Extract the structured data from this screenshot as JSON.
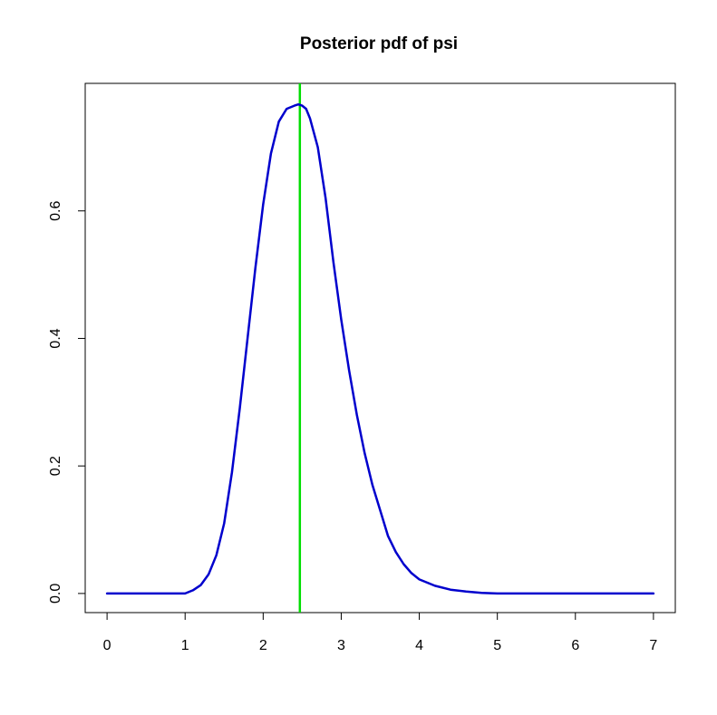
{
  "chart_data": {
    "type": "line",
    "title": "Posterior pdf of psi",
    "xlabel": "",
    "ylabel": "",
    "xlim": [
      -0.28,
      7.28
    ],
    "ylim": [
      -0.03,
      0.8
    ],
    "x_ticks": [
      0,
      1,
      2,
      3,
      4,
      5,
      6,
      7
    ],
    "y_ticks": [
      0.0,
      0.2,
      0.4,
      0.6
    ],
    "x_tick_labels": [
      "0",
      "1",
      "2",
      "3",
      "4",
      "5",
      "6",
      "7"
    ],
    "y_tick_labels": [
      "0.0",
      "0.2",
      "0.4",
      "0.6"
    ],
    "grid": false,
    "legend": "none",
    "series": [
      {
        "color": "#0000CD",
        "x": [
          0.0,
          0.5,
          1.0,
          1.1,
          1.2,
          1.3,
          1.4,
          1.5,
          1.6,
          1.7,
          1.8,
          1.9,
          2.0,
          2.1,
          2.2,
          2.3,
          2.4,
          2.45,
          2.5,
          2.55,
          2.6,
          2.7,
          2.8,
          2.9,
          3.0,
          3.1,
          3.2,
          3.3,
          3.4,
          3.5,
          3.6,
          3.7,
          3.8,
          3.9,
          4.0,
          4.2,
          4.4,
          4.6,
          4.8,
          5.0,
          5.5,
          6.0,
          6.5,
          7.0
        ],
        "y": [
          0.0,
          0.0,
          0.0,
          0.005,
          0.013,
          0.03,
          0.06,
          0.11,
          0.19,
          0.29,
          0.4,
          0.51,
          0.61,
          0.69,
          0.74,
          0.76,
          0.765,
          0.767,
          0.765,
          0.76,
          0.745,
          0.7,
          0.62,
          0.52,
          0.43,
          0.35,
          0.28,
          0.22,
          0.17,
          0.13,
          0.09,
          0.065,
          0.046,
          0.032,
          0.022,
          0.012,
          0.006,
          0.003,
          0.001,
          0.0,
          0.0,
          0.0,
          0.0,
          0.0
        ]
      }
    ],
    "vline": {
      "x": 2.47,
      "color": "#00DD00"
    }
  }
}
